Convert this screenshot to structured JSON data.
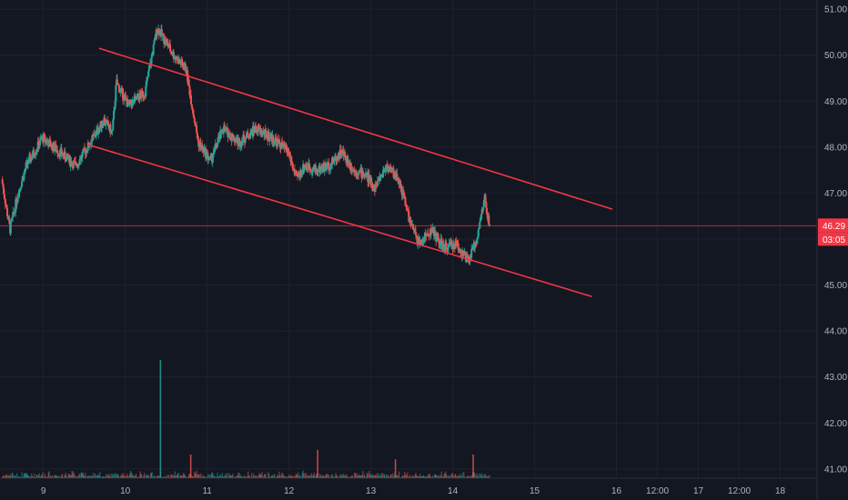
{
  "chart_data": {
    "type": "candlestick",
    "title": "",
    "xlabel": "",
    "ylabel": "",
    "ylim": [
      40.8,
      51.2
    ],
    "y_ticks": [
      "41.00",
      "42.00",
      "43.00",
      "44.00",
      "45.00",
      "46.00",
      "47.00",
      "48.00",
      "49.00",
      "50.00",
      "51.00"
    ],
    "x_ticks": [
      {
        "label": "9",
        "t": 0.5
      },
      {
        "label": "10",
        "t": 1.5
      },
      {
        "label": "11",
        "t": 2.5
      },
      {
        "label": "12",
        "t": 3.5
      },
      {
        "label": "13",
        "t": 4.5
      },
      {
        "label": "14",
        "t": 5.5
      },
      {
        "label": "15",
        "t": 6.5
      },
      {
        "label": "16",
        "t": 7.5
      },
      {
        "label": "12:00",
        "t": 8.0
      },
      {
        "label": "17",
        "t": 8.5
      },
      {
        "label": "12:00",
        "t": 9.0
      },
      {
        "label": "18",
        "t": 9.5
      }
    ],
    "t_range": [
      -0.03,
      9.95
    ],
    "grid": true,
    "price_path": [
      [
        0.0,
        47.3
      ],
      [
        0.1,
        46.2
      ],
      [
        0.2,
        47.0
      ],
      [
        0.3,
        47.6
      ],
      [
        0.5,
        48.2
      ],
      [
        0.7,
        47.9
      ],
      [
        0.9,
        47.6
      ],
      [
        1.05,
        48.0
      ],
      [
        1.25,
        48.6
      ],
      [
        1.35,
        48.3
      ],
      [
        1.4,
        49.4
      ],
      [
        1.55,
        48.9
      ],
      [
        1.75,
        49.2
      ],
      [
        1.9,
        50.6
      ],
      [
        2.1,
        50.0
      ],
      [
        2.25,
        49.7
      ],
      [
        2.4,
        48.1
      ],
      [
        2.55,
        47.7
      ],
      [
        2.7,
        48.4
      ],
      [
        2.9,
        48.1
      ],
      [
        3.1,
        48.4
      ],
      [
        3.3,
        48.2
      ],
      [
        3.5,
        47.9
      ],
      [
        3.6,
        47.3
      ],
      [
        3.7,
        47.6
      ],
      [
        3.85,
        47.5
      ],
      [
        4.0,
        47.6
      ],
      [
        4.15,
        47.9
      ],
      [
        4.3,
        47.5
      ],
      [
        4.45,
        47.4
      ],
      [
        4.55,
        47.1
      ],
      [
        4.7,
        47.6
      ],
      [
        4.85,
        47.3
      ],
      [
        5.0,
        46.3
      ],
      [
        5.1,
        45.9
      ],
      [
        5.25,
        46.2
      ],
      [
        5.4,
        45.8
      ],
      [
        5.55,
        45.9
      ],
      [
        5.7,
        45.5
      ],
      [
        5.8,
        46.0
      ],
      [
        5.9,
        46.9
      ],
      [
        5.95,
        46.3
      ]
    ],
    "volume_spikes": [
      [
        1.93,
        2.5
      ],
      [
        3.85,
        0.6
      ],
      [
        4.8,
        0.4
      ],
      [
        5.75,
        0.5
      ],
      [
        2.3,
        0.5
      ]
    ],
    "trendlines": [
      {
        "t1": 1.18,
        "p1": 50.15,
        "t2": 7.45,
        "p2": 46.65,
        "color": "#f23645"
      },
      {
        "t1": 1.05,
        "p1": 48.05,
        "t2": 7.2,
        "p2": 44.75,
        "color": "#f23645"
      }
    ],
    "price_line": 46.29,
    "last_price_label": "46.29",
    "countdown_label": "03:05",
    "up_color": "#26a69a",
    "down_color": "#ef5350",
    "badge_color": "#f23645",
    "grid_color": "#1e2230",
    "text_color": "#b2b5be"
  }
}
